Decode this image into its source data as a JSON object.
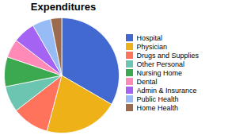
{
  "chart_data": {
    "type": "pie",
    "title": "Expenditures",
    "categories": [
      "Hospital",
      "Physician",
      "Drugs and Supplies",
      "Other Personal",
      "Nursing Home",
      "Dental",
      "Admin & Insurance",
      "Public Health",
      "Home Health"
    ],
    "values": [
      32,
      20,
      10,
      7,
      8,
      5,
      6,
      5,
      3
    ],
    "legend": "right"
  }
}
